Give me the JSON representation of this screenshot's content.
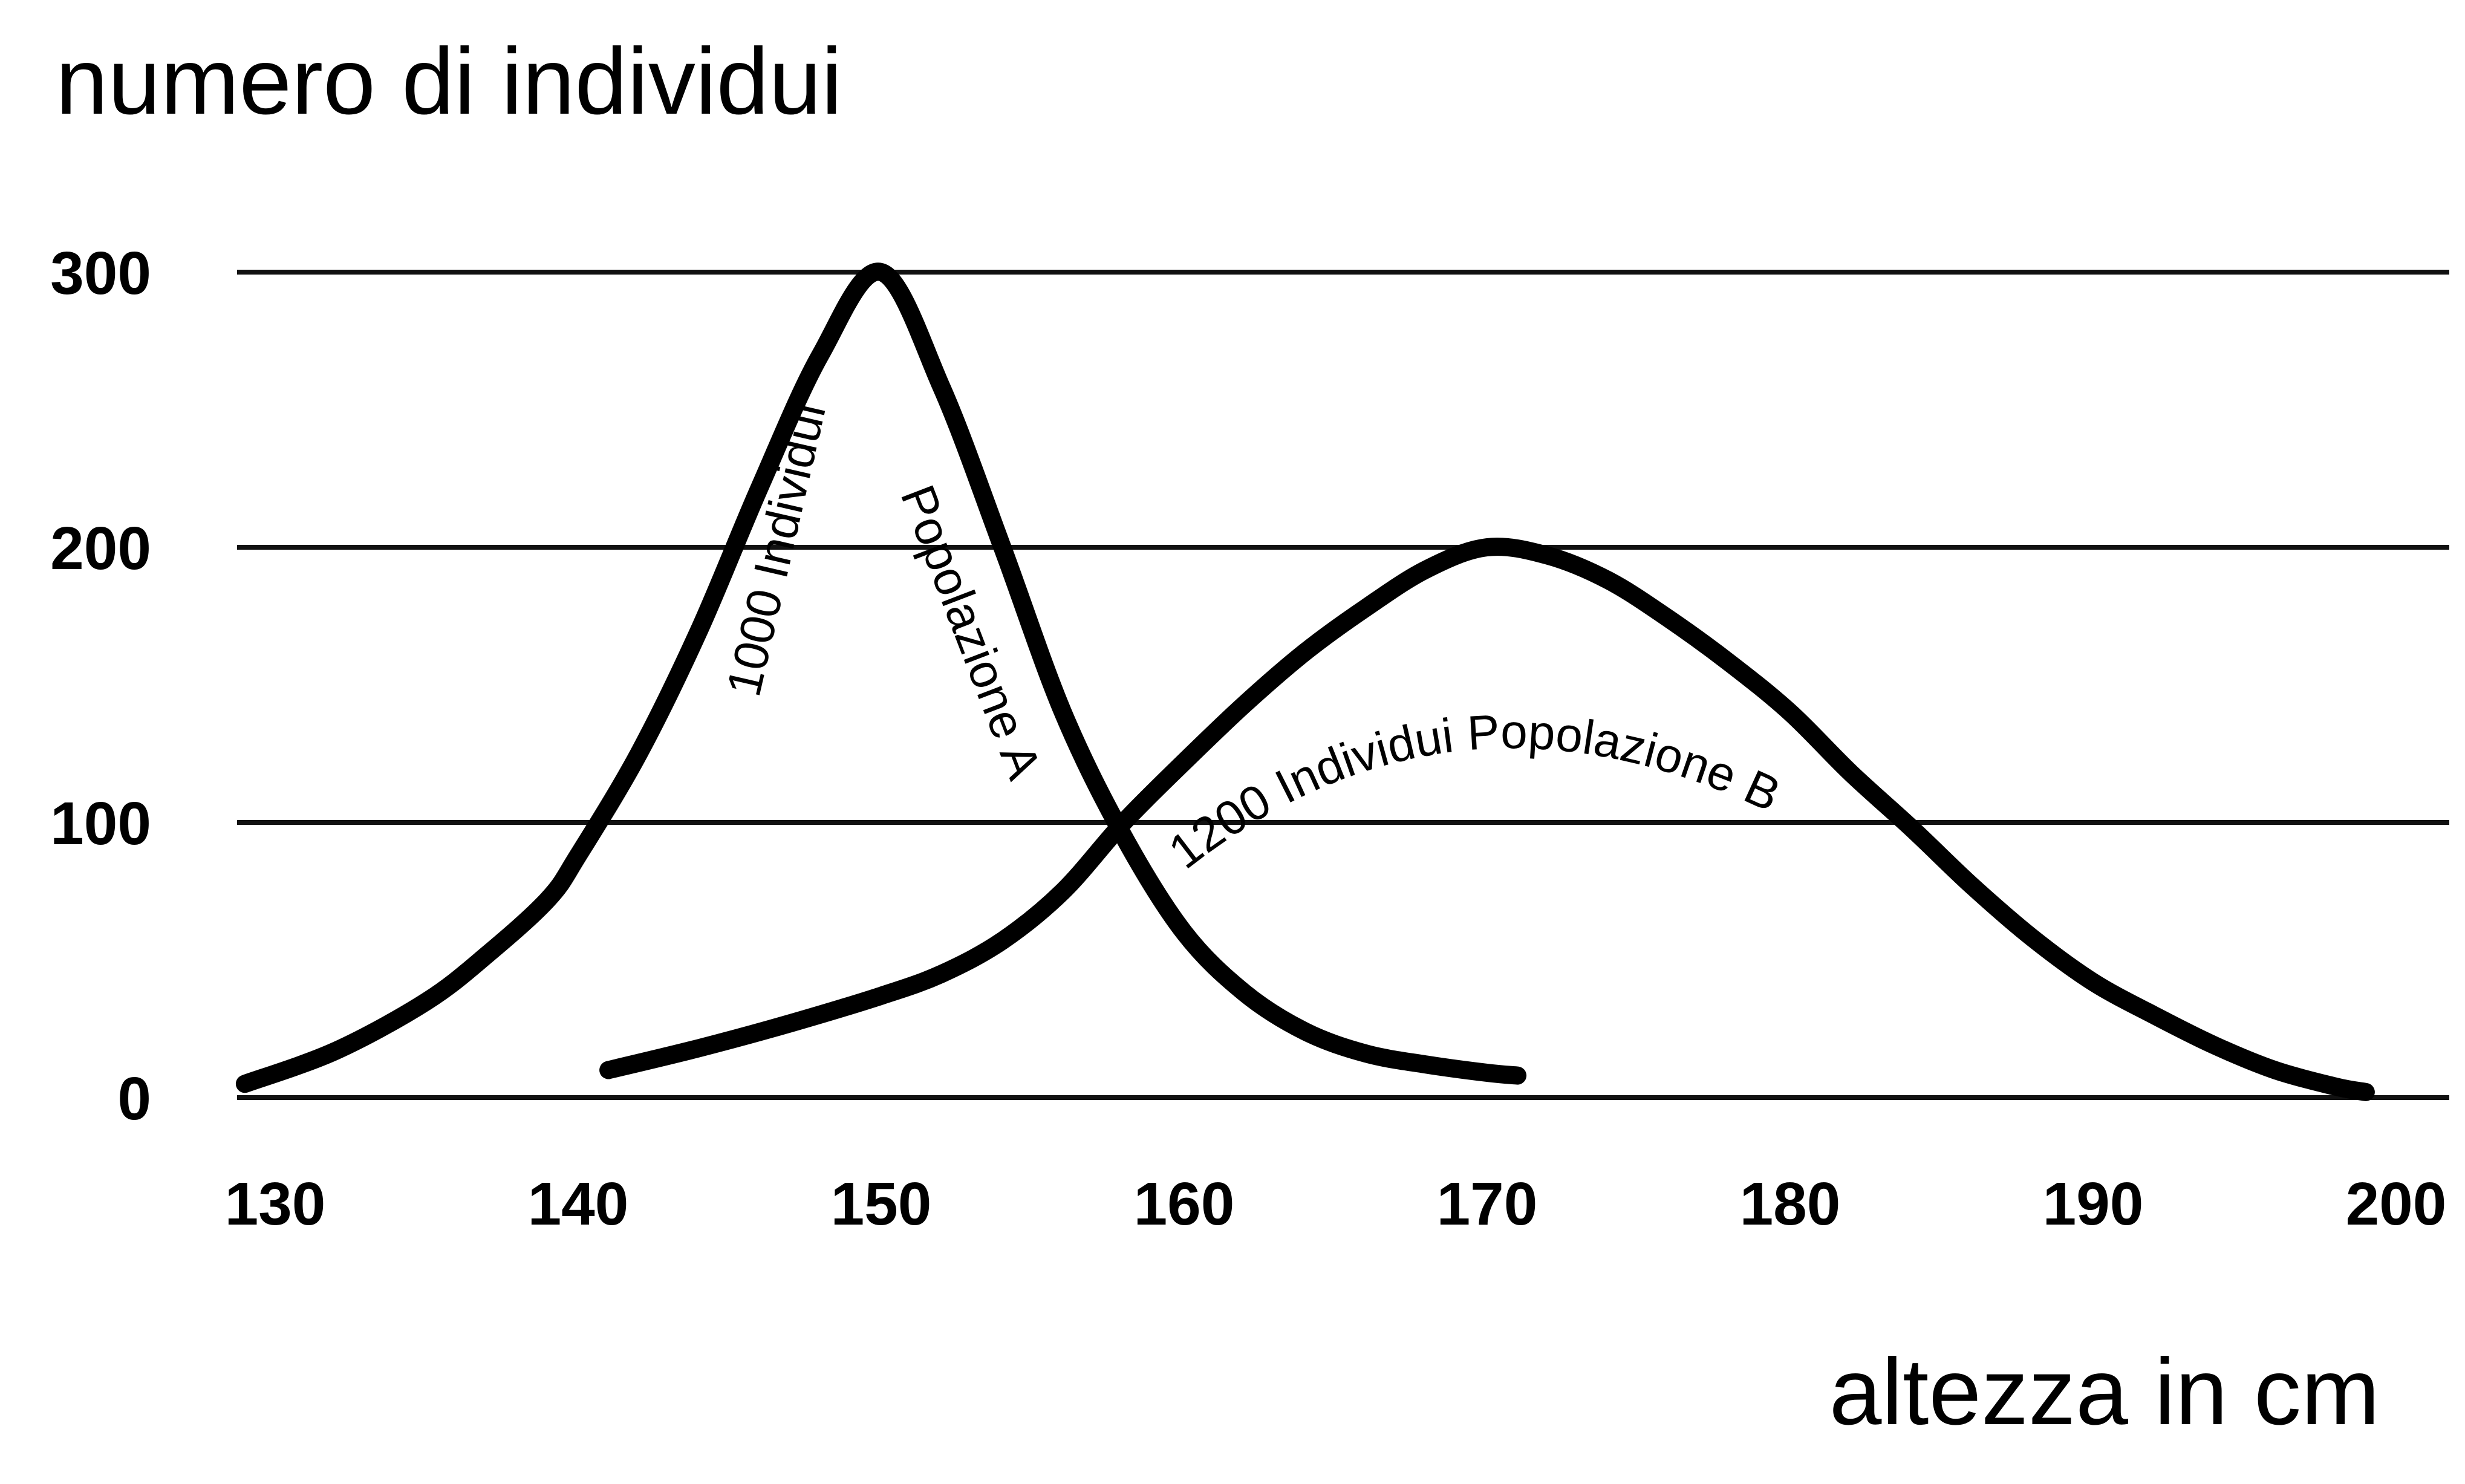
{
  "chart_data": {
    "type": "line",
    "ylabel": "numero di individui",
    "xlabel": "altezza in cm",
    "xlim": [
      130,
      200
    ],
    "ylim": [
      0,
      300
    ],
    "x_ticks": [
      130,
      140,
      150,
      160,
      170,
      180,
      190,
      200
    ],
    "y_ticks": [
      0,
      100,
      200,
      300
    ],
    "grid": "horizontal",
    "series": [
      {
        "name": "1000 Individui Popolazione A",
        "points": [
          [
            129,
            5
          ],
          [
            132,
            17
          ],
          [
            135,
            35
          ],
          [
            137,
            52
          ],
          [
            139,
            72
          ],
          [
            140,
            88
          ],
          [
            142,
            125
          ],
          [
            144,
            170
          ],
          [
            146,
            222
          ],
          [
            148,
            270
          ],
          [
            150,
            300
          ],
          [
            152,
            258
          ],
          [
            154,
            200
          ],
          [
            156,
            140
          ],
          [
            158,
            95
          ],
          [
            160,
            60
          ],
          [
            162,
            38
          ],
          [
            164,
            24
          ],
          [
            166,
            16
          ],
          [
            168,
            12
          ],
          [
            170,
            9
          ],
          [
            171,
            8
          ]
        ]
      },
      {
        "name": "1200 Individui Popolazione B",
        "points": [
          [
            141,
            10
          ],
          [
            144,
            18
          ],
          [
            147,
            27
          ],
          [
            150,
            37
          ],
          [
            152,
            45
          ],
          [
            154,
            57
          ],
          [
            156,
            75
          ],
          [
            158,
            100
          ],
          [
            160,
            122
          ],
          [
            162,
            143
          ],
          [
            164,
            162
          ],
          [
            166,
            178
          ],
          [
            168,
            192
          ],
          [
            170,
            200
          ],
          [
            172,
            197
          ],
          [
            174,
            188
          ],
          [
            176,
            174
          ],
          [
            178,
            158
          ],
          [
            180,
            140
          ],
          [
            182,
            118
          ],
          [
            184,
            98
          ],
          [
            186,
            77
          ],
          [
            188,
            58
          ],
          [
            190,
            42
          ],
          [
            192,
            30
          ],
          [
            194,
            19
          ],
          [
            196,
            10
          ],
          [
            198,
            4
          ],
          [
            199,
            2
          ]
        ]
      }
    ]
  }
}
